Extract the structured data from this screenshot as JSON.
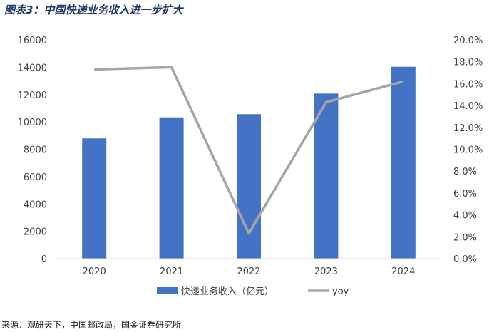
{
  "figure": {
    "title": "图表3：中国快递业务收入进一步扩大",
    "source": "来源：观研天下，中国邮政局，国金证券研究所"
  },
  "colors": {
    "bar": "#4472c4",
    "line": "#a5a5a5",
    "title": "#1f3864",
    "axis_text": "#404040",
    "baseline": "#d9d9d9"
  },
  "chart_data": {
    "type": "bar",
    "categories": [
      "2020",
      "2021",
      "2022",
      "2023",
      "2024"
    ],
    "series": [
      {
        "name": "快递业务收入（亿元）",
        "type": "bar",
        "axis": "left",
        "values": [
          8795,
          10332,
          10567,
          12074,
          14034
        ]
      },
      {
        "name": "yoy",
        "type": "line",
        "axis": "right",
        "values": [
          17.3,
          17.5,
          2.3,
          14.3,
          16.2
        ]
      }
    ],
    "y_left": {
      "min": 0,
      "max": 16000,
      "step": 2000,
      "ticks": [
        "0",
        "2000",
        "4000",
        "6000",
        "8000",
        "10000",
        "12000",
        "14000",
        "16000"
      ]
    },
    "y_right": {
      "min": 0,
      "max": 20,
      "step": 2,
      "ticks": [
        "0.0%",
        "2.0%",
        "4.0%",
        "6.0%",
        "8.0%",
        "10.0%",
        "12.0%",
        "14.0%",
        "16.0%",
        "18.0%",
        "20.0%"
      ]
    },
    "grid": false,
    "legend_position": "bottom"
  }
}
